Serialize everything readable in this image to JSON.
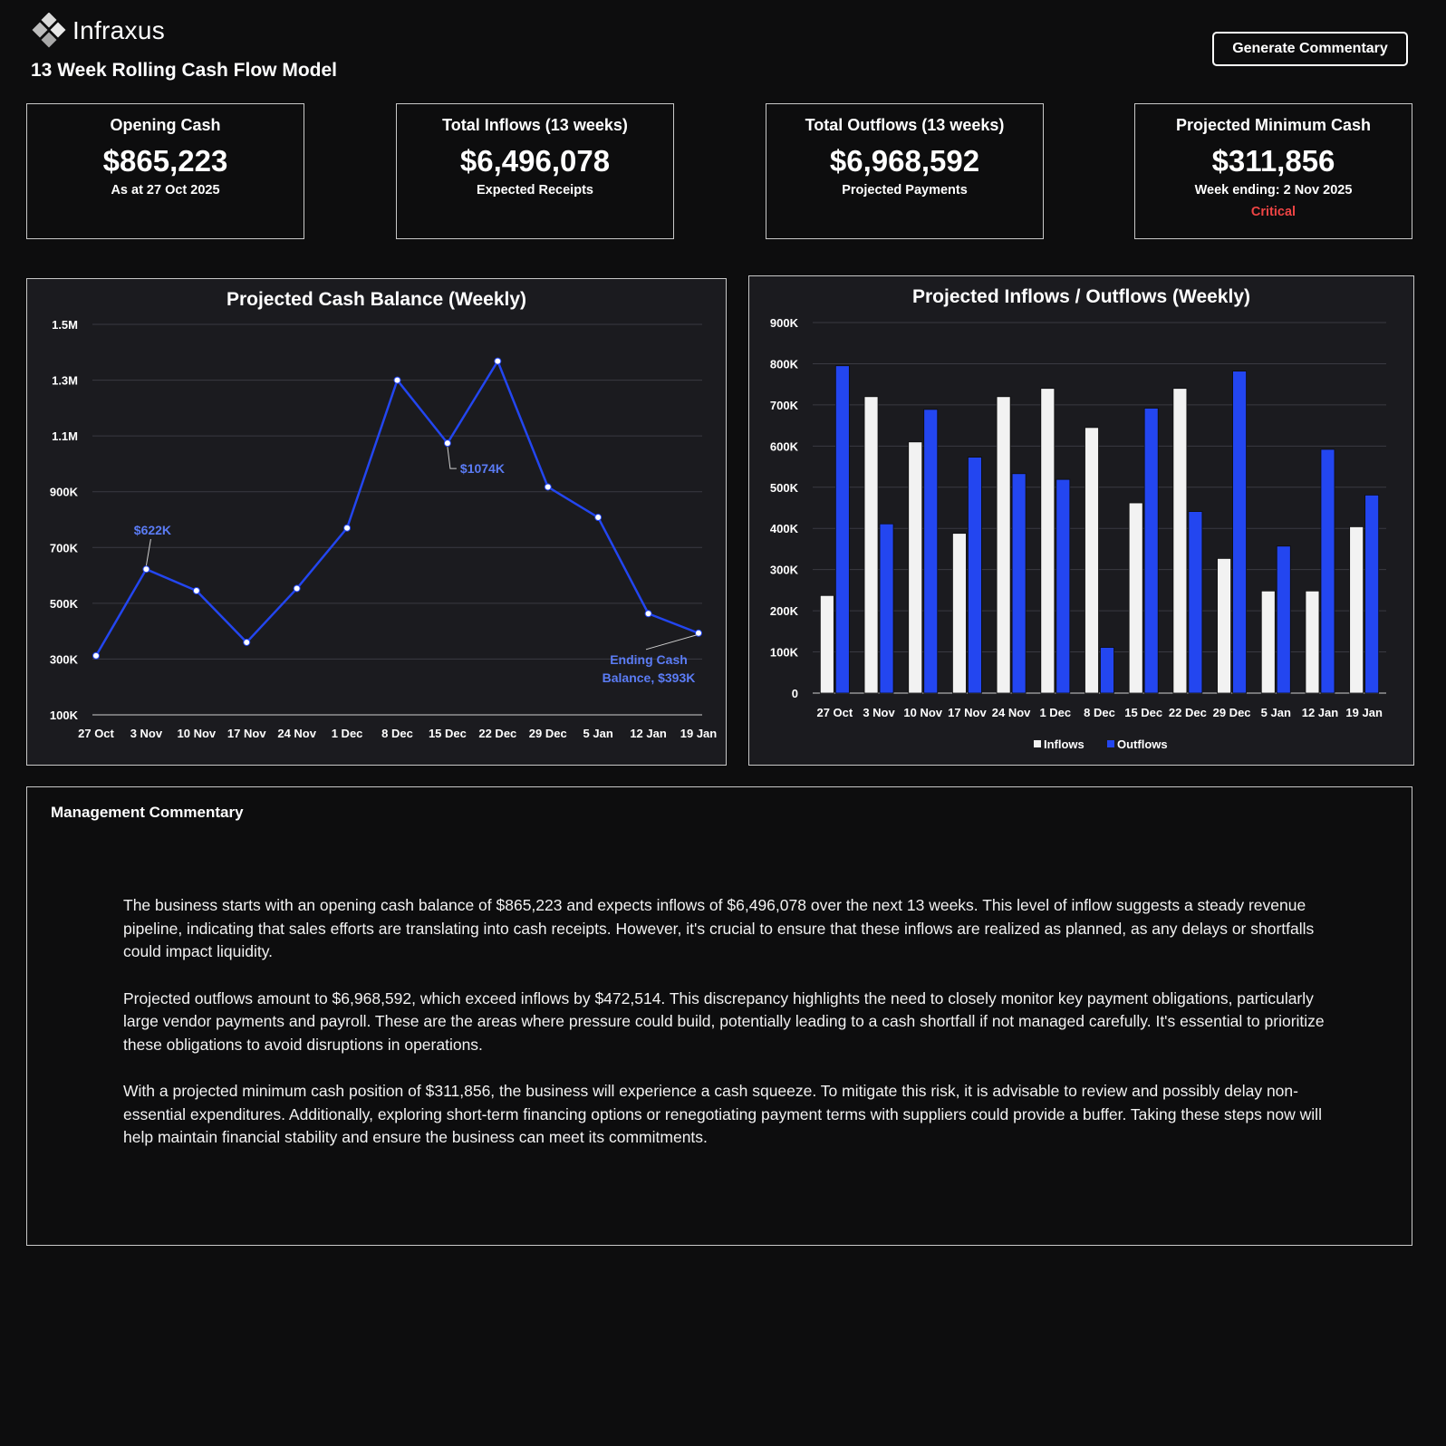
{
  "brand": {
    "name": "Infraxus"
  },
  "header": {
    "title": "13 Week Rolling Cash Flow Model",
    "generate_label": "Generate Commentary"
  },
  "kpis": [
    {
      "label": "Opening Cash",
      "value": "$865,223",
      "sub": "As at 27 Oct 2025"
    },
    {
      "label": "Total Inflows (13 weeks)",
      "value": "$6,496,078",
      "sub": "Expected Receipts"
    },
    {
      "label": "Total Outflows (13 weeks)",
      "value": "$6,968,592",
      "sub": "Projected Payments"
    },
    {
      "label": "Projected Minimum Cash",
      "value": "$311,856",
      "sub": "Week ending: 2 Nov 2025",
      "status": "Critical"
    }
  ],
  "colors": {
    "accent": "#2346f0",
    "inflow": "#f2f2f2",
    "critical": "#ef4444",
    "line_label": "#5b7cf5"
  },
  "chart_data": [
    {
      "type": "line",
      "title": "Projected Cash Balance (Weekly)",
      "categories": [
        "27 Oct",
        "3 Nov",
        "10 Nov",
        "17 Nov",
        "24 Nov",
        "1 Dec",
        "8 Dec",
        "15 Dec",
        "22 Dec",
        "29 Dec",
        "5 Jan",
        "12 Jan",
        "19 Jan"
      ],
      "series": [
        {
          "values": [
            311856,
            622000,
            545000,
            360000,
            553000,
            770000,
            1300000,
            1074000,
            1368000,
            917000,
            808000,
            463000,
            393000
          ]
        }
      ],
      "ylim": [
        100000,
        1500000
      ],
      "yticks": [
        100000,
        300000,
        500000,
        700000,
        900000,
        1100000,
        1300000,
        1500000
      ],
      "ytick_labels": [
        "100K",
        "300K",
        "500K",
        "700K",
        "900K",
        "1.1M",
        "1.3M",
        "1.5M"
      ],
      "annotations": [
        {
          "index": 1,
          "text": "$622K"
        },
        {
          "index": 7,
          "text": "$1074K"
        },
        {
          "index": 12,
          "lines": [
            "Ending Cash",
            "Balance, $393K"
          ]
        }
      ],
      "grid": true
    },
    {
      "type": "bar",
      "title": "Projected Inflows / Outflows (Weekly)",
      "categories": [
        "27 Oct",
        "3 Nov",
        "10 Nov",
        "17 Nov",
        "24 Nov",
        "1 Dec",
        "8 Dec",
        "15 Dec",
        "22 Dec",
        "29 Dec",
        "5 Jan",
        "12 Jan",
        "19 Jan"
      ],
      "series": [
        {
          "name": "Inflows",
          "values": [
            237000,
            720000,
            610000,
            388000,
            720000,
            740000,
            645000,
            462000,
            740000,
            327000,
            248000,
            248000,
            404000
          ]
        },
        {
          "name": "Outflows",
          "values": [
            795000,
            411000,
            689000,
            573000,
            533000,
            519000,
            111000,
            692000,
            441000,
            782000,
            357000,
            592000,
            481000
          ]
        }
      ],
      "ylim": [
        0,
        900000
      ],
      "yticks": [
        0,
        100000,
        200000,
        300000,
        400000,
        500000,
        600000,
        700000,
        800000,
        900000
      ],
      "ytick_labels": [
        "0",
        "100K",
        "200K",
        "300K",
        "400K",
        "500K",
        "600K",
        "700K",
        "800K",
        "900K"
      ],
      "legend": "bottom",
      "grid": true
    }
  ],
  "commentary": {
    "heading": "Management Commentary",
    "paragraphs": [
      "The business starts with an opening cash balance of $865,223 and expects inflows of $6,496,078 over the next 13 weeks. This level of inflow suggests a steady revenue pipeline, indicating that sales efforts are translating into cash receipts. However, it's crucial to ensure that these inflows are realized as planned, as any delays or shortfalls could impact liquidity.",
      "Projected outflows amount to $6,968,592, which exceed inflows by $472,514. This discrepancy highlights the need to closely monitor key payment obligations, particularly large vendor payments and payroll. These are the areas where pressure could build, potentially leading to a cash shortfall if not managed carefully. It's essential to prioritize these obligations to avoid disruptions in operations.",
      "With a projected minimum cash position of $311,856, the business will experience a cash squeeze. To mitigate this risk, it is advisable to review and possibly delay non-essential expenditures. Additionally, exploring short-term financing options or renegotiating payment terms with suppliers could provide a buffer. Taking these steps now will help maintain financial stability and ensure the business can meet its commitments."
    ]
  }
}
